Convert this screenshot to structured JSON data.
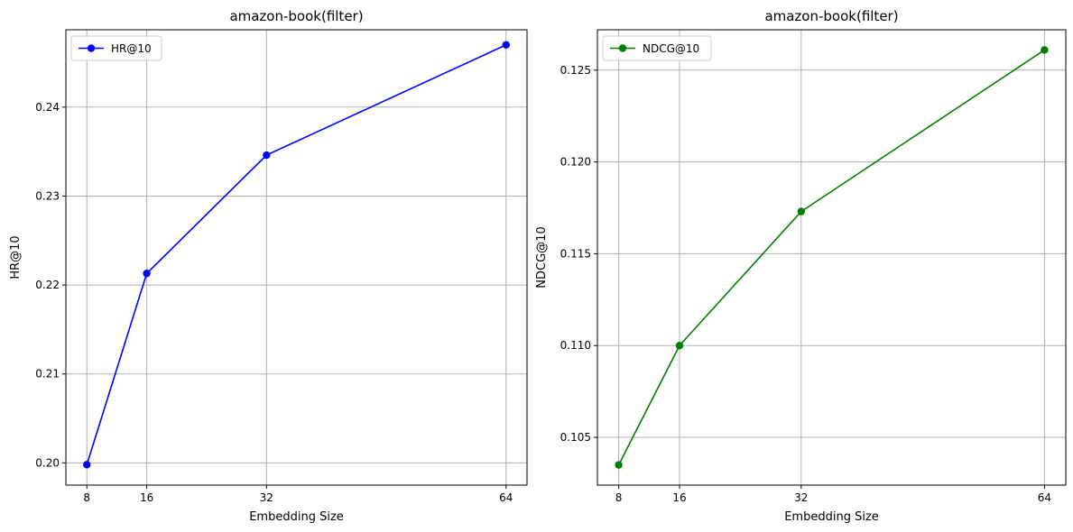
{
  "chart_data": [
    {
      "type": "line",
      "title": "amazon-book(filter)",
      "xlabel": "Embedding Size",
      "ylabel": "HR@10",
      "x": [
        8,
        16,
        32,
        64
      ],
      "xticks": [
        "8",
        "16",
        "32",
        "64"
      ],
      "xlim": [
        5.2,
        66.8
      ],
      "ylim": [
        0.1975,
        0.2487
      ],
      "yticks": [
        "0.20",
        "0.21",
        "0.22",
        "0.23",
        "0.24"
      ],
      "ytick_values": [
        0.2,
        0.21,
        0.22,
        0.23,
        0.24
      ],
      "grid": true,
      "legend_position": "top-left",
      "series": [
        {
          "name": "HR@10",
          "color": "#0000ff",
          "marker": "circle",
          "values": [
            0.1998,
            0.2213,
            0.2346,
            0.247
          ]
        }
      ]
    },
    {
      "type": "line",
      "title": "amazon-book(filter)",
      "xlabel": "Embedding Size",
      "ylabel": "NDCG@10",
      "x": [
        8,
        16,
        32,
        64
      ],
      "xticks": [
        "8",
        "16",
        "32",
        "64"
      ],
      "xlim": [
        5.2,
        66.8
      ],
      "ylim": [
        0.1024,
        0.1272
      ],
      "yticks": [
        "0.105",
        "0.110",
        "0.115",
        "0.120",
        "0.125"
      ],
      "ytick_values": [
        0.105,
        0.11,
        0.115,
        0.12,
        0.125
      ],
      "grid": true,
      "legend_position": "top-left",
      "series": [
        {
          "name": "NDCG@10",
          "color": "#008000",
          "marker": "circle",
          "values": [
            0.1035,
            0.11,
            0.1173,
            0.1261
          ]
        }
      ]
    }
  ]
}
